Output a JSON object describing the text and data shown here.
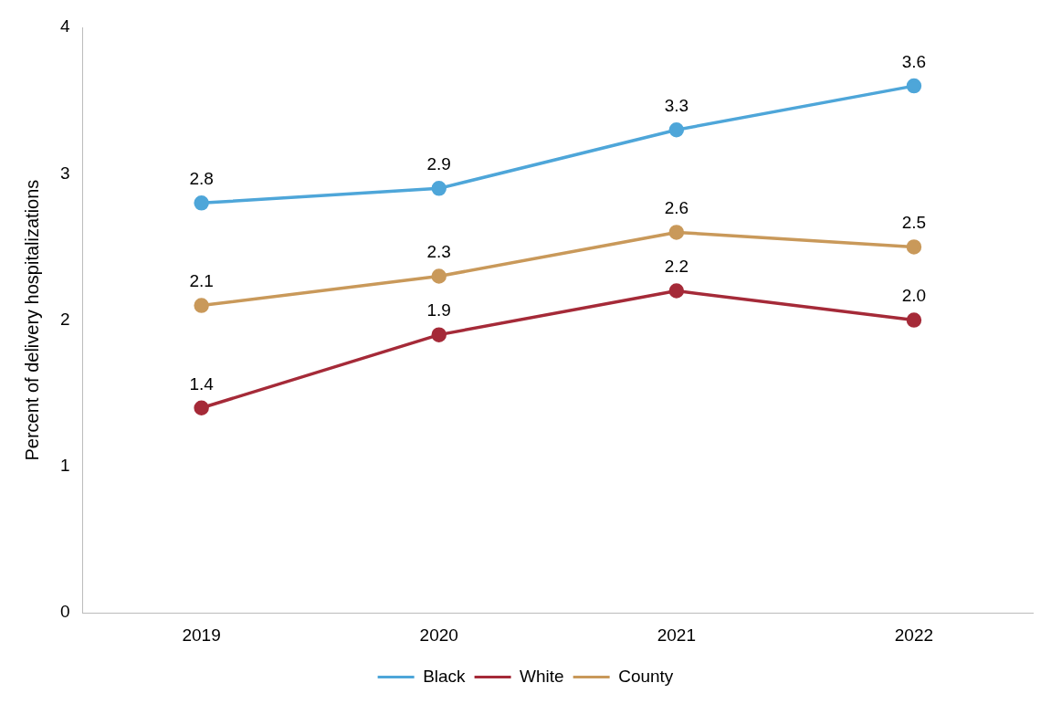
{
  "chart_data": {
    "type": "line",
    "ylabel": "Percent of delivery hospitalizations",
    "categories": [
      "2019",
      "2020",
      "2021",
      "2022"
    ],
    "series": [
      {
        "name": "Black",
        "color": "#4ea6d9",
        "values": [
          2.8,
          2.9,
          3.3,
          3.6
        ],
        "value_labels": [
          "2.8",
          "2.9",
          "3.3",
          "3.6"
        ]
      },
      {
        "name": "White",
        "color": "#a52a38",
        "values": [
          1.4,
          1.9,
          2.2,
          2.0
        ],
        "value_labels": [
          "1.4",
          "1.9",
          "2.2",
          "2.0"
        ]
      },
      {
        "name": "County",
        "color": "#c9995a",
        "values": [
          2.1,
          2.3,
          2.6,
          2.5
        ],
        "value_labels": [
          "2.1",
          "2.3",
          "2.6",
          "2.5"
        ]
      }
    ],
    "ylim": [
      0,
      4
    ],
    "yticks": [
      0,
      1,
      2,
      3,
      4
    ],
    "grid": false,
    "legend": "bottom",
    "marker": "circle",
    "line_style": "solid"
  }
}
